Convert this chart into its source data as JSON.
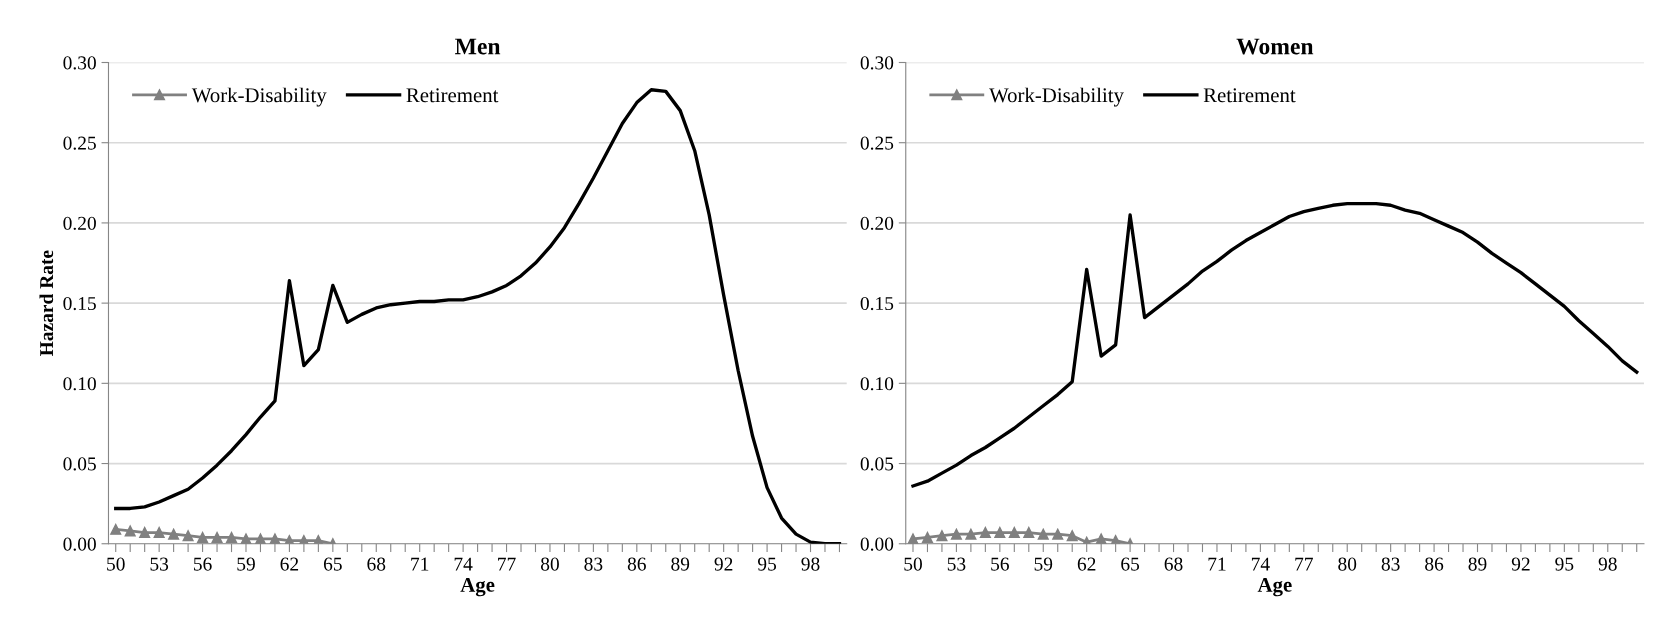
{
  "chart_data": [
    {
      "type": "line",
      "title": "Men",
      "xlabel": "Age",
      "ylabel": "Hazard Rate",
      "categories": [
        "50",
        null,
        null,
        "53",
        null,
        null,
        "56",
        null,
        null,
        "59",
        null,
        null,
        "62",
        null,
        null,
        "65",
        null,
        null,
        "68",
        null,
        null,
        "71",
        null,
        null,
        "74",
        null,
        null,
        "77",
        null,
        null,
        "80",
        null,
        null,
        "83",
        null,
        null,
        "86",
        null,
        null,
        "89",
        null,
        null,
        "92",
        null,
        null,
        "95",
        null,
        null,
        "98",
        null,
        null
      ],
      "ylim": [
        0,
        0.3
      ],
      "yticks": [
        {
          "value": 0,
          "label": "0.00"
        },
        {
          "value": 0.05,
          "label": "0.05"
        },
        {
          "value": 0.1,
          "label": "0.10"
        },
        {
          "value": 0.15,
          "label": "0.15"
        },
        {
          "value": 0.2,
          "label": "0.20"
        },
        {
          "value": 0.25,
          "label": "0.25"
        },
        {
          "value": 0.3,
          "label": "0.30"
        }
      ],
      "grid": "y",
      "legend": "top left",
      "series": [
        {
          "name": "Work-Disability",
          "color": "#808080",
          "marker": "triangle",
          "values": [
            0.009,
            0.008,
            0.007,
            0.007,
            0.006,
            0.005,
            0.004,
            0.004,
            0.004,
            0.003,
            0.003,
            0.003,
            0.002,
            0.002,
            0.002,
            0.0,
            null,
            null,
            null,
            null,
            null,
            null,
            null,
            null,
            null,
            null,
            null,
            null,
            null,
            null,
            null,
            null,
            null,
            null,
            null,
            null,
            null,
            null,
            null,
            null,
            null,
            null,
            null,
            null,
            null,
            null,
            null,
            null,
            null,
            null,
            null
          ]
        },
        {
          "name": "Retirement",
          "color": "#000000",
          "marker": "none",
          "values": [
            0.022,
            0.022,
            0.023,
            0.026,
            0.03,
            0.034,
            0.041,
            0.049,
            0.058,
            0.068,
            0.079,
            0.089,
            0.164,
            0.111,
            0.121,
            0.161,
            0.138,
            0.143,
            0.147,
            0.149,
            0.15,
            0.151,
            0.151,
            0.152,
            0.152,
            0.154,
            0.157,
            0.161,
            0.167,
            0.175,
            0.185,
            0.197,
            0.212,
            0.228,
            0.245,
            0.262,
            0.275,
            0.283,
            0.282,
            0.27,
            0.245,
            0.205,
            0.155,
            0.108,
            0.067,
            0.035,
            0.016,
            0.006,
            0.001,
            0.0,
            0.0
          ]
        }
      ]
    },
    {
      "type": "line",
      "title": "Women",
      "xlabel": "Age",
      "categories": [
        "50",
        null,
        null,
        "53",
        null,
        null,
        "56",
        null,
        null,
        "59",
        null,
        null,
        "62",
        null,
        null,
        "65",
        null,
        null,
        "68",
        null,
        null,
        "71",
        null,
        null,
        "74",
        null,
        null,
        "77",
        null,
        null,
        "80",
        null,
        null,
        "83",
        null,
        null,
        "86",
        null,
        null,
        "89",
        null,
        null,
        "92",
        null,
        null,
        "95",
        null,
        null,
        "98",
        null,
        null
      ],
      "ylim": [
        0,
        0.3
      ],
      "yticks": [
        {
          "value": 0,
          "label": "0.00"
        },
        {
          "value": 0.05,
          "label": "0.05"
        },
        {
          "value": 0.1,
          "label": "0.10"
        },
        {
          "value": 0.15,
          "label": "0.15"
        },
        {
          "value": 0.2,
          "label": "0.20"
        },
        {
          "value": 0.25,
          "label": "0.25"
        },
        {
          "value": 0.3,
          "label": "0.30"
        }
      ],
      "grid": "y",
      "legend": "top left",
      "series": [
        {
          "name": "Work-Disability",
          "color": "#808080",
          "marker": "triangle",
          "values": [
            0.003,
            0.004,
            0.005,
            0.006,
            0.006,
            0.007,
            0.007,
            0.007,
            0.007,
            0.006,
            0.006,
            0.005,
            0.001,
            0.003,
            0.002,
            0.0,
            null,
            null,
            null,
            null,
            null,
            null,
            null,
            null,
            null,
            null,
            null,
            null,
            null,
            null,
            null,
            null,
            null,
            null,
            null,
            null,
            null,
            null,
            null,
            null,
            null,
            null,
            null,
            null,
            null,
            null,
            null,
            null,
            null,
            null,
            null
          ]
        },
        {
          "name": "Retirement",
          "color": "#000000",
          "marker": "none",
          "values": [
            0.036,
            0.039,
            0.044,
            0.049,
            0.055,
            0.06,
            0.066,
            0.072,
            0.079,
            0.086,
            0.093,
            0.101,
            0.171,
            0.117,
            0.124,
            0.205,
            0.141,
            0.148,
            0.155,
            0.162,
            0.17,
            0.176,
            0.183,
            0.189,
            0.194,
            0.199,
            0.204,
            0.207,
            0.209,
            0.211,
            0.212,
            0.212,
            0.212,
            0.211,
            0.208,
            0.206,
            0.202,
            0.198,
            0.194,
            0.188,
            0.181,
            0.175,
            0.169,
            0.162,
            0.155,
            0.148,
            0.139,
            0.131,
            0.123,
            0.114,
            0.107
          ]
        }
      ]
    }
  ]
}
